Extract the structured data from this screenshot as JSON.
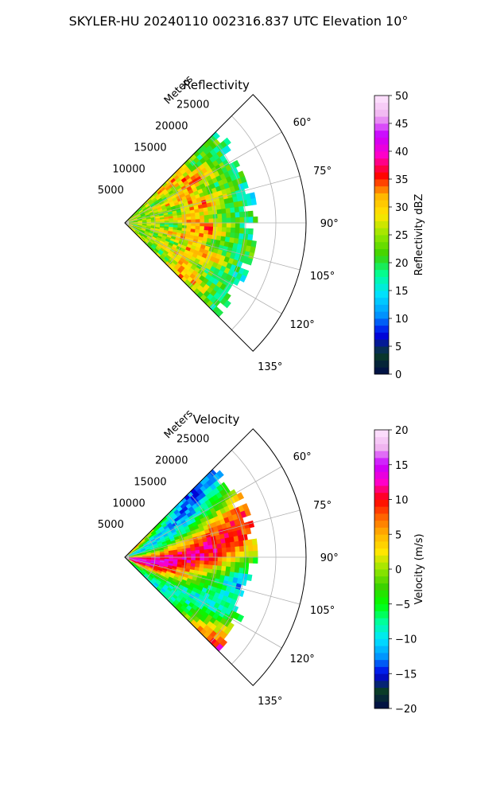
{
  "figure_title": "SKYLER-HU  20240110  002316.837 UTC Elevation 10°",
  "chart_data": [
    {
      "type": "heatmap",
      "projection": "polar-sector",
      "title": "Reflectivity",
      "radial_label": "Meters",
      "radial_ticks": [
        5000,
        10000,
        15000,
        20000,
        25000
      ],
      "radial_tick_labels": [
        "5000",
        "10000",
        "15000",
        "20000",
        "25000"
      ],
      "radial_range": [
        0,
        30000
      ],
      "azimuth_range_deg": [
        45,
        135
      ],
      "azimuth_ticks_deg": [
        60,
        75,
        90,
        105,
        120,
        135
      ],
      "azimuth_tick_labels": [
        "60°",
        "75°",
        "90°",
        "105°",
        "120°",
        "135°"
      ],
      "grid": true,
      "data_extent_m": 22000,
      "colorbar": {
        "label": "Reflectivity dBZ",
        "range": [
          0,
          50
        ],
        "ticks": [
          0,
          5,
          10,
          15,
          20,
          25,
          30,
          35,
          40,
          45,
          50
        ],
        "tick_labels": [
          "0",
          "5",
          "10",
          "15",
          "20",
          "25",
          "30",
          "35",
          "40",
          "45",
          "50"
        ],
        "stops": [
          "#000a4a",
          "#0a3c28",
          "#0000e6",
          "#0096ff",
          "#00e0ff",
          "#00ff9a",
          "#3cd200",
          "#96e600",
          "#ffe600",
          "#ffb400",
          "#ff0000",
          "#ff00c8",
          "#c800ff",
          "#f0b4f0",
          "#ffe6ff"
        ]
      }
    },
    {
      "type": "heatmap",
      "projection": "polar-sector",
      "title": "Velocity",
      "radial_label": "Meters",
      "radial_ticks": [
        5000,
        10000,
        15000,
        20000,
        25000
      ],
      "radial_tick_labels": [
        "5000",
        "10000",
        "15000",
        "20000",
        "25000"
      ],
      "radial_range": [
        0,
        30000
      ],
      "azimuth_range_deg": [
        45,
        135
      ],
      "azimuth_ticks_deg": [
        60,
        75,
        90,
        105,
        120,
        135
      ],
      "azimuth_tick_labels": [
        "60°",
        "75°",
        "90°",
        "105°",
        "120°",
        "135°"
      ],
      "grid": true,
      "data_extent_m": 22000,
      "colorbar": {
        "label": "Velocity (m/s)",
        "range": [
          -20,
          20
        ],
        "ticks": [
          -20,
          -15,
          -10,
          -5,
          0,
          5,
          10,
          15,
          20
        ],
        "tick_labels": [
          "−20",
          "−15",
          "−10",
          "−5",
          "0",
          "5",
          "10",
          "15",
          "20"
        ],
        "stops": [
          "#000a4a",
          "#0a3c28",
          "#0000e6",
          "#0096ff",
          "#00e6ff",
          "#00ff9a",
          "#00ff00",
          "#3cd200",
          "#96e600",
          "#ffe600",
          "#ffb400",
          "#ff6400",
          "#ff0000",
          "#ff00c8",
          "#c800ff",
          "#f0b4f0",
          "#ffe6ff"
        ]
      }
    }
  ]
}
